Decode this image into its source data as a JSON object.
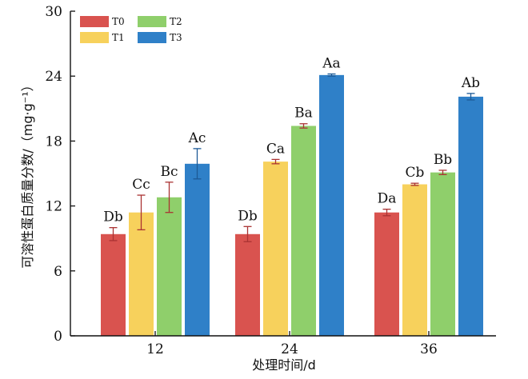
{
  "chart_data": {
    "type": "bar",
    "xlabel": "处理时间/d",
    "ylabel": "可溶性蛋白质量分数/（mg·g⁻¹）",
    "ylim": [
      0,
      30
    ],
    "yticks": [
      0,
      6,
      12,
      18,
      24,
      30
    ],
    "categories": [
      "12",
      "24",
      "36"
    ],
    "grid": false,
    "legend_position": "top-left",
    "series": [
      {
        "name": "T0",
        "color": "#d9534f",
        "values": [
          9.4,
          9.4,
          11.4
        ],
        "errors": [
          0.6,
          0.7,
          0.3
        ],
        "labels": [
          "Db",
          "Db",
          "Da"
        ]
      },
      {
        "name": "T1",
        "color": "#f7d15c",
        "values": [
          11.4,
          16.1,
          14.0
        ],
        "errors": [
          1.6,
          0.2,
          0.1
        ],
        "labels": [
          "Cc",
          "Ca",
          "Cb"
        ]
      },
      {
        "name": "T2",
        "color": "#8fcf6b",
        "values": [
          12.8,
          19.4,
          15.1
        ],
        "errors": [
          1.4,
          0.2,
          0.2
        ],
        "labels": [
          "Bc",
          "Ba",
          "Bb"
        ]
      },
      {
        "name": "T3",
        "color": "#2f80c8",
        "values": [
          15.9,
          24.1,
          22.1
        ],
        "errors": [
          1.4,
          0.1,
          0.3
        ],
        "labels": [
          "Ac",
          "Aa",
          "Ab"
        ]
      }
    ]
  }
}
